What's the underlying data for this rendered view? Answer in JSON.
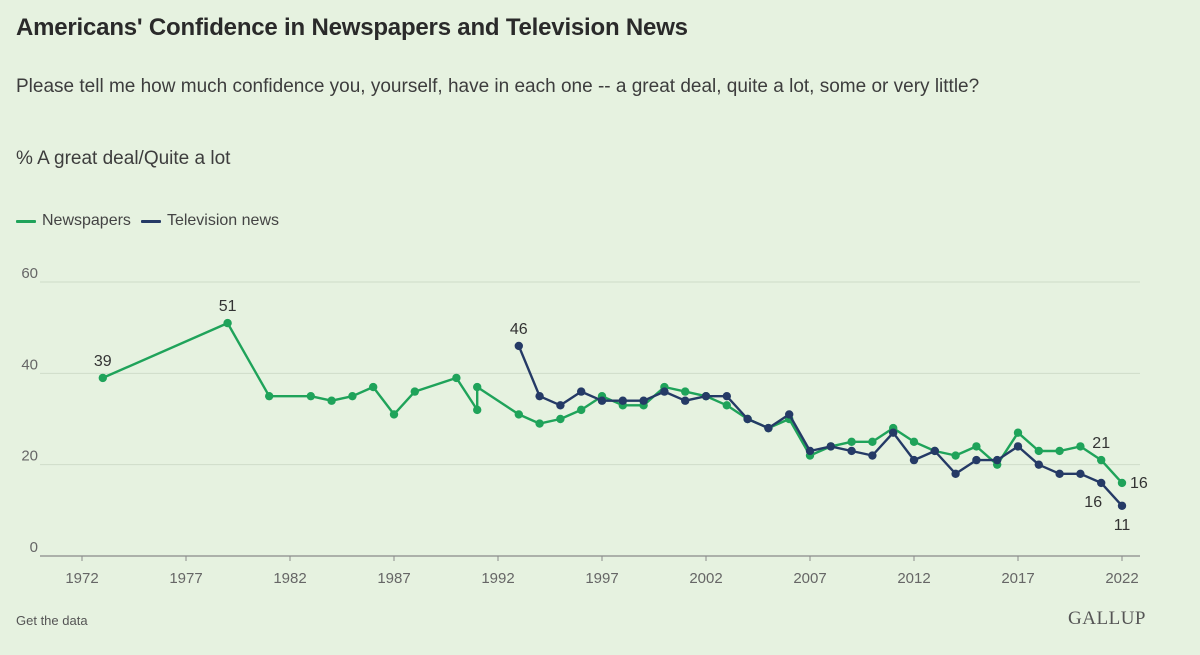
{
  "header": {
    "title": "Americans' Confidence in Newspapers and Television News",
    "subtitle": "Please tell me how much confidence you, yourself, have in each one -- a great deal, quite a lot, some or very little?",
    "measure": "% A great deal/Quite a lot"
  },
  "legend": [
    {
      "label": "Newspapers",
      "color": "#1fa35a"
    },
    {
      "label": "Television news",
      "color": "#253a66"
    }
  ],
  "footer": {
    "link": "Get the data",
    "brand": "GALLUP"
  },
  "chart_data": {
    "type": "line",
    "title": "Americans' Confidence in Newspapers and Television News",
    "xlabel": "",
    "ylabel": "% A great deal/Quite a lot",
    "xlim": [
      1972,
      2022
    ],
    "ylim": [
      0,
      60
    ],
    "xticks": [
      1972,
      1977,
      1982,
      1987,
      1992,
      1997,
      2002,
      2007,
      2012,
      2017,
      2022
    ],
    "yticks": [
      0,
      20,
      40,
      60
    ],
    "grid": true,
    "legend_position": "top-left",
    "series": [
      {
        "name": "Newspapers",
        "color": "#1fa35a",
        "points": [
          [
            1973,
            39
          ],
          [
            1979,
            51
          ],
          [
            1981,
            35
          ],
          [
            1983,
            35
          ],
          [
            1984,
            34
          ],
          [
            1985,
            35
          ],
          [
            1986,
            37
          ],
          [
            1987,
            31
          ],
          [
            1988,
            36
          ],
          [
            1990,
            39
          ],
          [
            1991,
            32
          ],
          [
            1991,
            37
          ],
          [
            1993,
            31
          ],
          [
            1994,
            29
          ],
          [
            1995,
            30
          ],
          [
            1996,
            32
          ],
          [
            1997,
            35
          ],
          [
            1998,
            33
          ],
          [
            1999,
            33
          ],
          [
            2000,
            37
          ],
          [
            2001,
            36
          ],
          [
            2002,
            35
          ],
          [
            2003,
            33
          ],
          [
            2004,
            30
          ],
          [
            2005,
            28
          ],
          [
            2006,
            30
          ],
          [
            2007,
            22
          ],
          [
            2008,
            24
          ],
          [
            2009,
            25
          ],
          [
            2010,
            25
          ],
          [
            2011,
            28
          ],
          [
            2012,
            25
          ],
          [
            2013,
            23
          ],
          [
            2014,
            22
          ],
          [
            2015,
            24
          ],
          [
            2016,
            20
          ],
          [
            2017,
            27
          ],
          [
            2018,
            23
          ],
          [
            2019,
            23
          ],
          [
            2020,
            24
          ],
          [
            2021,
            21
          ],
          [
            2022,
            16
          ]
        ]
      },
      {
        "name": "Television news",
        "color": "#253a66",
        "points": [
          [
            1993,
            46
          ],
          [
            1994,
            35
          ],
          [
            1995,
            33
          ],
          [
            1996,
            36
          ],
          [
            1997,
            34
          ],
          [
            1998,
            34
          ],
          [
            1999,
            34
          ],
          [
            2000,
            36
          ],
          [
            2001,
            34
          ],
          [
            2002,
            35
          ],
          [
            2003,
            35
          ],
          [
            2004,
            30
          ],
          [
            2005,
            28
          ],
          [
            2006,
            31
          ],
          [
            2007,
            23
          ],
          [
            2008,
            24
          ],
          [
            2009,
            23
          ],
          [
            2010,
            22
          ],
          [
            2011,
            27
          ],
          [
            2012,
            21
          ],
          [
            2013,
            23
          ],
          [
            2014,
            18
          ],
          [
            2015,
            21
          ],
          [
            2016,
            21
          ],
          [
            2017,
            24
          ],
          [
            2018,
            20
          ],
          [
            2019,
            18
          ],
          [
            2020,
            18
          ],
          [
            2021,
            16
          ],
          [
            2022,
            11
          ]
        ]
      }
    ],
    "annotations": [
      {
        "series": "Newspapers",
        "x": 1973,
        "y": 39,
        "text": "39",
        "anchor": "above"
      },
      {
        "series": "Newspapers",
        "x": 1979,
        "y": 51,
        "text": "51",
        "anchor": "above"
      },
      {
        "series": "Television news",
        "x": 1993,
        "y": 46,
        "text": "46",
        "anchor": "above"
      },
      {
        "series": "Newspapers",
        "x": 2021,
        "y": 21,
        "text": "21",
        "anchor": "above"
      },
      {
        "series": "Newspapers",
        "x": 2022,
        "y": 16,
        "text": "16",
        "anchor": "right"
      },
      {
        "series": "Television news",
        "x": 2021,
        "y": 16,
        "text": "16",
        "anchor": "below"
      },
      {
        "series": "Television news",
        "x": 2022,
        "y": 11,
        "text": "11",
        "anchor": "below"
      }
    ]
  }
}
